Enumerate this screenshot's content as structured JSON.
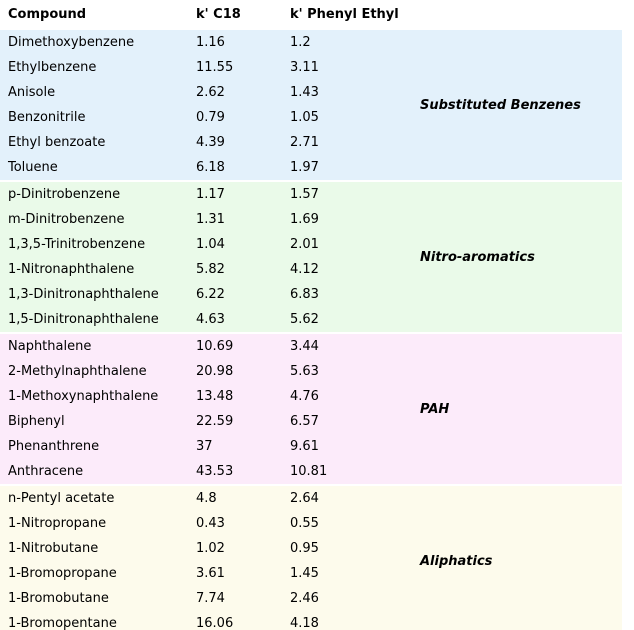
{
  "chart_data": {
    "type": "table",
    "columns": [
      "Compound",
      "k' C18",
      "k' Phenyl Ethyl"
    ],
    "legend_position": "right-spanning-cell",
    "grid": false,
    "groups": [
      {
        "label": "Substituted Benzenes",
        "color": "#E3F1FB",
        "rows": [
          {
            "compound": "Dimethoxybenzene",
            "k_c18": "1.16",
            "k_phenyl": "1.2"
          },
          {
            "compound": "Ethylbenzene",
            "k_c18": "11.55",
            "k_phenyl": "3.11"
          },
          {
            "compound": "Anisole",
            "k_c18": "2.62",
            "k_phenyl": "1.43"
          },
          {
            "compound": "Benzonitrile",
            "k_c18": "0.79",
            "k_phenyl": "1.05"
          },
          {
            "compound": "Ethyl benzoate",
            "k_c18": "4.39",
            "k_phenyl": "2.71"
          },
          {
            "compound": "Toluene",
            "k_c18": "6.18",
            "k_phenyl": "1.97"
          }
        ]
      },
      {
        "label": "Nitro-aromatics",
        "color": "#EAFAE9",
        "rows": [
          {
            "compound": "p-Dinitrobenzene",
            "k_c18": "1.17",
            "k_phenyl": "1.57"
          },
          {
            "compound": "m-Dinitrobenzene",
            "k_c18": "1.31",
            "k_phenyl": "1.69"
          },
          {
            "compound": "1,3,5-Trinitrobenzene",
            "k_c18": "1.04",
            "k_phenyl": "2.01"
          },
          {
            "compound": "1-Nitronaphthalene",
            "k_c18": "5.82",
            "k_phenyl": "4.12"
          },
          {
            "compound": "1,3-Dinitronaphthalene",
            "k_c18": "6.22",
            "k_phenyl": "6.83"
          },
          {
            "compound": "1,5-Dinitronaphthalene",
            "k_c18": "4.63",
            "k_phenyl": "5.62"
          }
        ]
      },
      {
        "label": "PAH",
        "color": "#FCEBFA",
        "rows": [
          {
            "compound": "Naphthalene",
            "k_c18": "10.69",
            "k_phenyl": "3.44"
          },
          {
            "compound": "2-Methylnaphthalene",
            "k_c18": "20.98",
            "k_phenyl": "5.63"
          },
          {
            "compound": "1-Methoxynaphthalene",
            "k_c18": "13.48",
            "k_phenyl": "4.76"
          },
          {
            "compound": "Biphenyl",
            "k_c18": "22.59",
            "k_phenyl": "6.57"
          },
          {
            "compound": "Phenanthrene",
            "k_c18": "37",
            "k_phenyl": "9.61"
          },
          {
            "compound": "Anthracene",
            "k_c18": "43.53",
            "k_phenyl": "10.81"
          }
        ]
      },
      {
        "label": "Aliphatics",
        "color": "#FDFBEC",
        "rows": [
          {
            "compound": "n-Pentyl acetate",
            "k_c18": "4.8",
            "k_phenyl": "2.64"
          },
          {
            "compound": "1-Nitropropane",
            "k_c18": "0.43",
            "k_phenyl": "0.55"
          },
          {
            "compound": "1-Nitrobutane",
            "k_c18": "1.02",
            "k_phenyl": "0.95"
          },
          {
            "compound": "1-Bromopropane",
            "k_c18": "3.61",
            "k_phenyl": "1.45"
          },
          {
            "compound": "1-Bromobutane",
            "k_c18": "7.74",
            "k_phenyl": "2.46"
          },
          {
            "compound": "1-Bromopentane",
            "k_c18": "16.06",
            "k_phenyl": "4.18"
          }
        ]
      }
    ]
  }
}
